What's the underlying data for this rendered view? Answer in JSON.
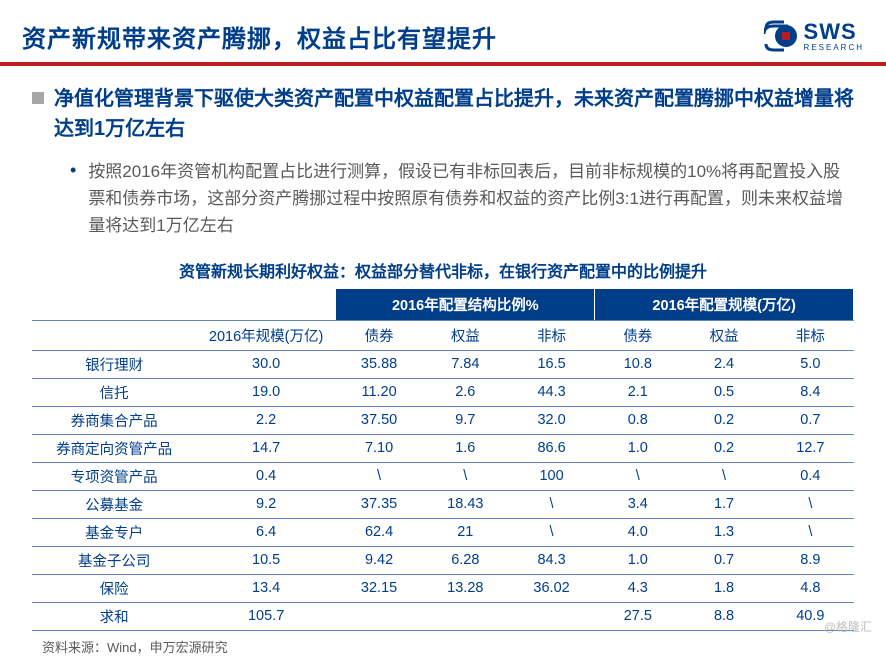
{
  "header": {
    "title": "资产新规带来资产腾挪，权益占比有望提升",
    "logo_text": "SWS",
    "logo_sub": "RESEARCH"
  },
  "main_bullet": "净值化管理背景下驱使大类资产配置中权益配置占比提升，未来资产配置腾挪中权益增量将达到1万亿左右",
  "sub_bullet": "按照2016年资管机构配置占比进行测算，假设已有非标回表后，目前非标规模的10%将再配置投入股票和债券市场，这部分资产腾挪过程中按照原有债券和权益的资产比例3:1进行再配置，则未来权益增量将达到1万亿左右",
  "table": {
    "title": "资管新规长期利好权益：权益部分替代非标，在银行资产配置中的比例提升",
    "group_headers": {
      "g1": "2016年配置结构比例%",
      "g2": "2016年配置规模(万亿)"
    },
    "sub_headers": {
      "scale": "2016年规模(万亿)",
      "bond1": "债券",
      "equity1": "权益",
      "nonstd1": "非标",
      "bond2": "债券",
      "equity2": "权益",
      "nonstd2": "非标"
    },
    "rows": [
      {
        "label": "银行理财",
        "scale": "30.0",
        "b1": "35.88",
        "e1": "7.84",
        "n1": "16.5",
        "b2": "10.8",
        "e2": "2.4",
        "n2": "5.0"
      },
      {
        "label": "信托",
        "scale": "19.0",
        "b1": "11.20",
        "e1": "2.6",
        "n1": "44.3",
        "b2": "2.1",
        "e2": "0.5",
        "n2": "8.4"
      },
      {
        "label": "券商集合产品",
        "scale": "2.2",
        "b1": "37.50",
        "e1": "9.7",
        "n1": "32.0",
        "b2": "0.8",
        "e2": "0.2",
        "n2": "0.7"
      },
      {
        "label": "券商定向资管产品",
        "scale": "14.7",
        "b1": "7.10",
        "e1": "1.6",
        "n1": "86.6",
        "b2": "1.0",
        "e2": "0.2",
        "n2": "12.7"
      },
      {
        "label": "专项资管产品",
        "scale": "0.4",
        "b1": "\\",
        "e1": "\\",
        "n1": "100",
        "b2": "\\",
        "e2": "\\",
        "n2": "0.4"
      },
      {
        "label": "公募基金",
        "scale": "9.2",
        "b1": "37.35",
        "e1": "18.43",
        "n1": "\\",
        "b2": "3.4",
        "e2": "1.7",
        "n2": "\\"
      },
      {
        "label": "基金专户",
        "scale": "6.4",
        "b1": "62.4",
        "e1": "21",
        "n1": "\\",
        "b2": "4.0",
        "e2": "1.3",
        "n2": "\\"
      },
      {
        "label": "基金子公司",
        "scale": "10.5",
        "b1": "9.42",
        "e1": "6.28",
        "n1": "84.3",
        "b2": "1.0",
        "e2": "0.7",
        "n2": "8.9"
      },
      {
        "label": "保险",
        "scale": "13.4",
        "b1": "32.15",
        "e1": "13.28",
        "n1": "36.02",
        "b2": "4.3",
        "e2": "1.8",
        "n2": "4.8"
      },
      {
        "label": "求和",
        "scale": "105.7",
        "b1": "",
        "e1": "",
        "n1": "",
        "b2": "27.5",
        "e2": "8.8",
        "n2": "40.9"
      }
    ]
  },
  "source": "资料来源：Wind，申万宏源研究",
  "watermark": "@格隆汇",
  "colors": {
    "brand_blue": "#003e8a",
    "accent_red": "#b41f23",
    "text_gray": "#595959",
    "border_blue": "#6088b8"
  }
}
